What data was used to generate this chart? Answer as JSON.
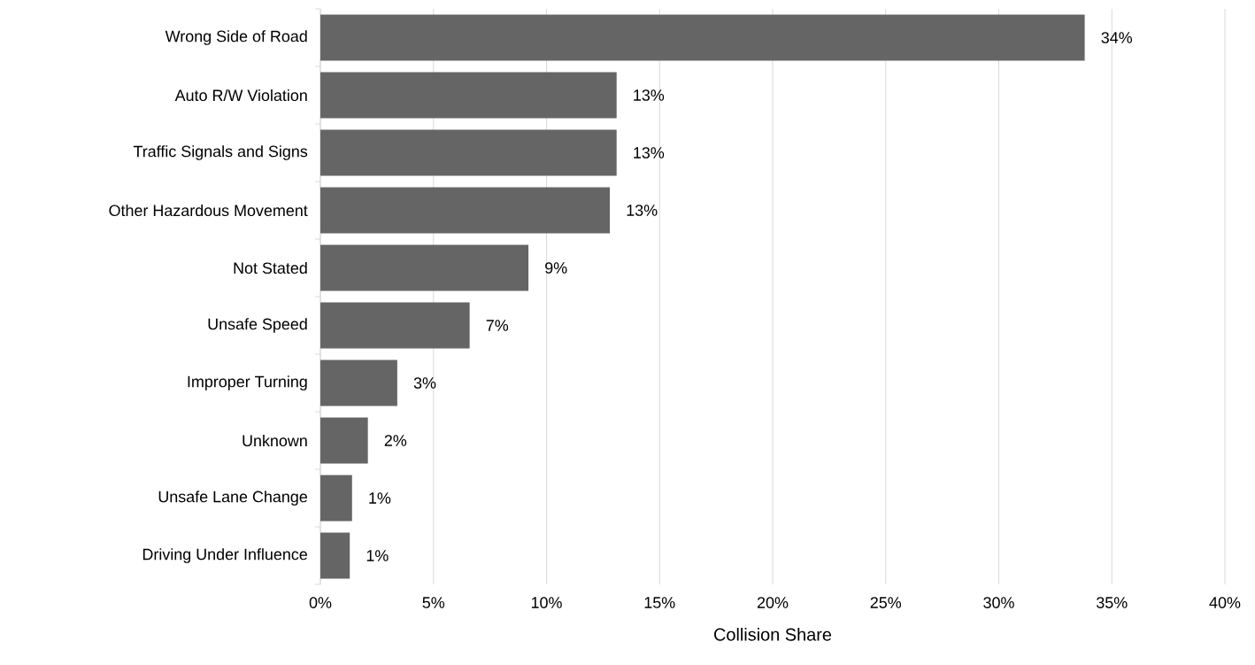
{
  "chart_data": {
    "type": "bar",
    "orientation": "horizontal",
    "xlabel": "Collision Share",
    "categories": [
      "Wrong Side of Road",
      "Auto R/W Violation",
      "Traffic Signals and Signs",
      "Other Hazardous Movement",
      "Not Stated",
      "Unsafe Speed",
      "Improper Turning",
      "Unknown",
      "Unsafe Lane Change",
      "Driving Under Influence"
    ],
    "values": [
      33.8,
      13.1,
      13.1,
      12.8,
      9.2,
      6.6,
      3.4,
      2.1,
      1.4,
      1.3
    ],
    "value_labels": [
      "34%",
      "13%",
      "13%",
      "13%",
      "9%",
      "7%",
      "3%",
      "2%",
      "1%",
      "1%"
    ],
    "color": "#666565",
    "xlim": [
      0,
      40
    ],
    "xticks": [
      {
        "value": 0,
        "label": "0%"
      },
      {
        "value": 5,
        "label": "5%"
      },
      {
        "value": 10,
        "label": "10%"
      },
      {
        "value": 15,
        "label": "15%"
      },
      {
        "value": 20,
        "label": "20%"
      },
      {
        "value": 25,
        "label": "25%"
      },
      {
        "value": 30,
        "label": "30%"
      },
      {
        "value": 35,
        "label": "35%"
      },
      {
        "value": 40,
        "label": "40%"
      }
    ],
    "grid": "x"
  }
}
